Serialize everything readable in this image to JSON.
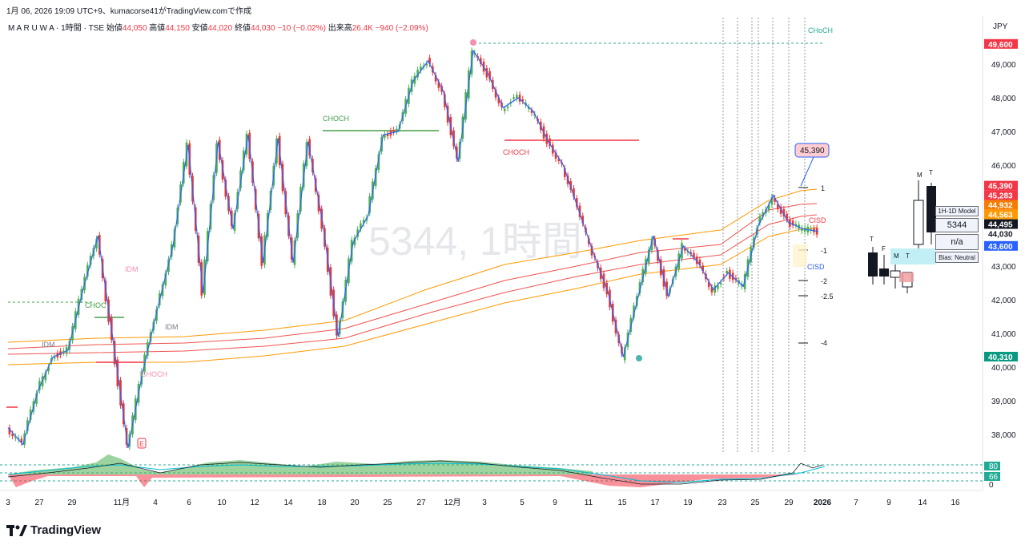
{
  "caption": "1月 06, 2026 19:09 UTC+9、kumacorse41がTradingView.comで作成",
  "legend": {
    "symbol": "M A R U W A · 1時間 · TSE",
    "open_label": "始値",
    "open": "44,050",
    "high_label": "高値",
    "high": "44,150",
    "low_label": "安値",
    "low": "44,020",
    "close_label": "終値",
    "close": "44,030",
    "change": "−10 (−0.02%)",
    "volume_label": "出来高",
    "volume": "26.4K",
    "volume_change": "−940 (−2.09%)"
  },
  "currency": "JPY",
  "watermark": "5344, 1時間",
  "brand": "TradingView",
  "model_panel": {
    "title": "1H-1D Model",
    "symbol": "5344",
    "status": "n/a",
    "bias": "Bias: Neutral"
  },
  "colors": {
    "up": "#22ab94",
    "down": "#f23645",
    "candle_up": "#4caf50",
    "candle_down": "#e53935",
    "zigzag": "#2962ff",
    "choch": "#43a047",
    "ema_orange": "#ff9800",
    "ema_red": "#ef5350",
    "osc_line": "#00bcd4"
  },
  "chart_data": {
    "type": "line",
    "title": "",
    "xlabel": "",
    "ylabel": "",
    "ylim": [
      37800,
      49900
    ],
    "grid": false,
    "x_ticks": [
      "3",
      "27",
      "29",
      "11月",
      "4",
      "6",
      "10",
      "12",
      "14",
      "18",
      "20",
      "25",
      "27",
      "12月",
      "3",
      "5",
      "9",
      "11",
      "15",
      "17",
      "19",
      "23",
      "25",
      "29",
      "2026",
      "7",
      "9",
      "14",
      "16",
      "20"
    ],
    "y_ticks": [
      38000,
      39000,
      40000,
      41000,
      42000,
      43000,
      44000,
      45000,
      46000,
      47000,
      48000,
      49000
    ],
    "y_tick_labels": [
      "38,000",
      "39,000",
      "40,000",
      "41,000",
      "42,000",
      "43,000",
      "44,000",
      "45,000",
      "46,000",
      "47,000",
      "48,000",
      "49,000"
    ],
    "series": [
      {
        "name": "",
        "values": [
          38200,
          37700,
          39300,
          40300,
          40500,
          42300,
          43900,
          40800,
          37600,
          39900,
          41800,
          43600,
          46600,
          42200,
          46700,
          44100,
          46900,
          43100,
          46800,
          43100,
          46700,
          44200,
          40900,
          43700,
          44500,
          46900,
          47000,
          48500,
          49100,
          48200,
          46100,
          49400,
          48700,
          47700,
          48000,
          47600,
          46700,
          46000,
          44700,
          43400,
          42200,
          40300,
          42100,
          43900,
          42100,
          43600,
          43100,
          42300,
          42800,
          42400,
          44200,
          45100,
          44300,
          44100,
          44030
        ]
      }
    ],
    "price_tags": [
      {
        "label": "49,600",
        "value": 49600,
        "color": "#f23645"
      },
      {
        "label": "45,390",
        "value": 45390,
        "color": "#f23645"
      },
      {
        "label": "45,283",
        "value": 45283,
        "color": "#f23645"
      },
      {
        "label": "44,932",
        "value": 44932,
        "color": "#f57c00"
      },
      {
        "label": "44,563",
        "value": 44563,
        "color": "#ff9800"
      },
      {
        "label": "44,495",
        "value": 44495,
        "color": "#131722"
      },
      {
        "label": "44,030",
        "value": 44030,
        "color": "#787b86"
      },
      {
        "label": "43,600",
        "value": 43600,
        "color": "#2962ff"
      },
      {
        "label": "40,310",
        "value": 40310,
        "color": "#089981"
      }
    ],
    "callout": {
      "label": "45,390",
      "value": 45390
    },
    "annotations": [
      "CHoCH",
      "CHOCH",
      "CHOCH",
      "CHOCH",
      "CHOC",
      "IDM",
      "IDM",
      "IDM",
      "CISD",
      "CISD",
      "E"
    ],
    "fib_labels": [
      "1",
      "-1",
      "-2",
      "-2.5",
      "-4"
    ],
    "oscillator": {
      "tick_labels": [
        "80",
        "66",
        "0"
      ],
      "bands": [
        80,
        66
      ]
    }
  }
}
